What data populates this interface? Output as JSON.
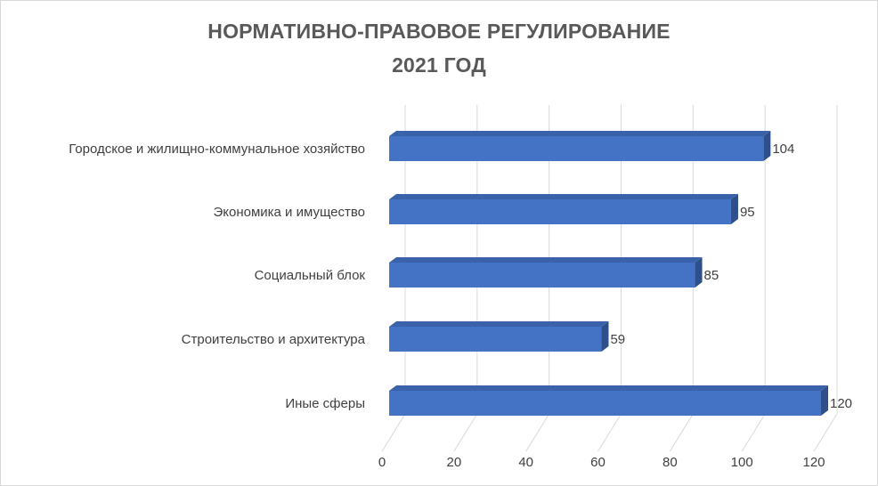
{
  "chart_data": {
    "type": "bar",
    "orientation": "horizontal",
    "style": "3d",
    "title_line1": "НОРМАТИВНО-ПРАВОВОЕ  РЕГУЛИРОВАНИЕ",
    "title_line2": "2021 ГОД",
    "categories": [
      "Городское и жилищно-коммунальное хозяйство",
      "Экономика и имущество",
      "Социальный блок",
      "Строительство и архитектура",
      "Иные сферы"
    ],
    "values": [
      104,
      95,
      85,
      59,
      120
    ],
    "xlim": [
      0,
      120
    ],
    "xticks": [
      "0",
      "20",
      "40",
      "60",
      "80",
      "100",
      "120"
    ],
    "grid": true,
    "data_labels": true,
    "colors": {
      "bar_front": "#4472c4",
      "bar_top": "#3a62ab",
      "bar_side": "#2f4f8a",
      "grid": "#d9d9d9",
      "text": "#404040",
      "title": "#595959"
    }
  }
}
